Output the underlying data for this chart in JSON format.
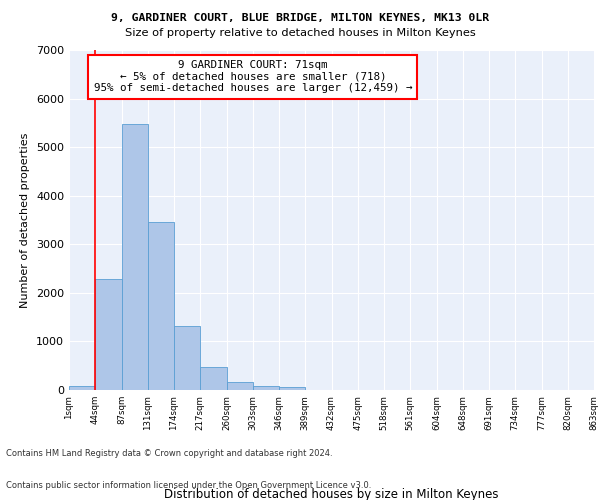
{
  "title1": "9, GARDINER COURT, BLUE BRIDGE, MILTON KEYNES, MK13 0LR",
  "title2": "Size of property relative to detached houses in Milton Keynes",
  "xlabel": "Distribution of detached houses by size in Milton Keynes",
  "ylabel": "Number of detached properties",
  "bar_values": [
    75,
    2280,
    5470,
    3450,
    1320,
    470,
    160,
    90,
    60,
    0,
    0,
    0,
    0,
    0,
    0,
    0,
    0,
    0,
    0,
    0
  ],
  "bin_labels": [
    "1sqm",
    "44sqm",
    "87sqm",
    "131sqm",
    "174sqm",
    "217sqm",
    "260sqm",
    "303sqm",
    "346sqm",
    "389sqm",
    "432sqm",
    "475sqm",
    "518sqm",
    "561sqm",
    "604sqm",
    "648sqm",
    "691sqm",
    "734sqm",
    "777sqm",
    "820sqm",
    "863sqm"
  ],
  "bar_color": "#aec6e8",
  "bar_edge_color": "#5a9fd4",
  "annotation_text": "9 GARDINER COURT: 71sqm\n← 5% of detached houses are smaller (718)\n95% of semi-detached houses are larger (12,459) →",
  "ylim": [
    0,
    7000
  ],
  "yticks": [
    0,
    1000,
    2000,
    3000,
    4000,
    5000,
    6000,
    7000
  ],
  "footer1": "Contains HM Land Registry data © Crown copyright and database right 2024.",
  "footer2": "Contains public sector information licensed under the Open Government Licence v3.0.",
  "bg_color": "#eaf0fa",
  "grid_color": "white",
  "fig_bg": "white"
}
